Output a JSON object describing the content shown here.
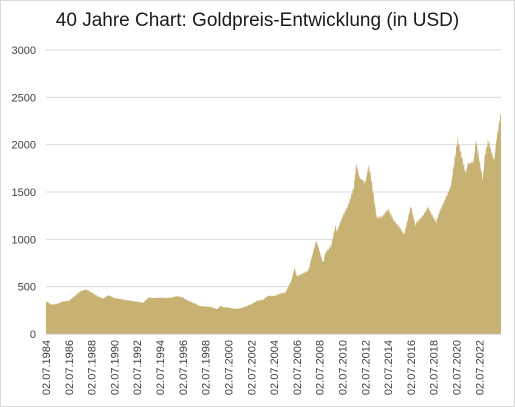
{
  "chart_data": {
    "type": "area",
    "title": "40 Jahre Chart: Goldpreis-Entwicklung (in USD)",
    "xlabel": "",
    "ylabel": "",
    "ylim": [
      0,
      3000
    ],
    "yticks": [
      "0",
      "500",
      "1000",
      "1500",
      "2000",
      "2500",
      "3000"
    ],
    "xticks": [
      "02.07.1984",
      "02.07.1986",
      "02.07.1988",
      "02.07.1990",
      "02.07.1992",
      "02.07.1994",
      "02.07.1996",
      "02.07.1998",
      "02.07.2000",
      "02.07.2002",
      "02.07.2004",
      "02.07.2006",
      "02.07.2008",
      "02.07.2010",
      "02.07.2012",
      "02.07.2014",
      "02.07.2016",
      "02.07.2018",
      "02.07.2020",
      "02.07.2022"
    ],
    "xrange": [
      1984.5,
      2024.4
    ],
    "grid": true,
    "legend": "none",
    "color": "#c8b273",
    "series": [
      {
        "points": [
          [
            1984.5,
            345
          ],
          [
            1985.0,
            310
          ],
          [
            1985.5,
            320
          ],
          [
            1986.0,
            345
          ],
          [
            1986.5,
            350
          ],
          [
            1987.0,
            400
          ],
          [
            1987.5,
            450
          ],
          [
            1988.0,
            470
          ],
          [
            1988.5,
            440
          ],
          [
            1989.0,
            400
          ],
          [
            1989.5,
            375
          ],
          [
            1990.0,
            410
          ],
          [
            1990.5,
            380
          ],
          [
            1991.0,
            370
          ],
          [
            1991.5,
            360
          ],
          [
            1992.0,
            350
          ],
          [
            1992.5,
            340
          ],
          [
            1993.0,
            330
          ],
          [
            1993.5,
            385
          ],
          [
            1994.0,
            380
          ],
          [
            1994.5,
            385
          ],
          [
            1995.0,
            380
          ],
          [
            1995.5,
            385
          ],
          [
            1996.0,
            400
          ],
          [
            1996.5,
            385
          ],
          [
            1997.0,
            350
          ],
          [
            1997.5,
            325
          ],
          [
            1998.0,
            295
          ],
          [
            1998.5,
            290
          ],
          [
            1999.0,
            285
          ],
          [
            1999.5,
            260
          ],
          [
            1999.8,
            300
          ],
          [
            2000.0,
            285
          ],
          [
            2000.5,
            280
          ],
          [
            2001.0,
            265
          ],
          [
            2001.5,
            270
          ],
          [
            2002.0,
            290
          ],
          [
            2002.5,
            315
          ],
          [
            2003.0,
            350
          ],
          [
            2003.5,
            360
          ],
          [
            2004.0,
            405
          ],
          [
            2004.5,
            400
          ],
          [
            2005.0,
            425
          ],
          [
            2005.5,
            440
          ],
          [
            2006.0,
            560
          ],
          [
            2006.3,
            700
          ],
          [
            2006.5,
            610
          ],
          [
            2007.0,
            640
          ],
          [
            2007.5,
            670
          ],
          [
            2008.0,
            900
          ],
          [
            2008.2,
            990
          ],
          [
            2008.8,
            750
          ],
          [
            2009.0,
            860
          ],
          [
            2009.5,
            930
          ],
          [
            2009.9,
            1150
          ],
          [
            2010.0,
            1080
          ],
          [
            2010.5,
            1240
          ],
          [
            2011.0,
            1360
          ],
          [
            2011.5,
            1550
          ],
          [
            2011.7,
            1800
          ],
          [
            2012.0,
            1650
          ],
          [
            2012.5,
            1600
          ],
          [
            2012.8,
            1780
          ],
          [
            2013.0,
            1660
          ],
          [
            2013.3,
            1400
          ],
          [
            2013.5,
            1230
          ],
          [
            2014.0,
            1240
          ],
          [
            2014.5,
            1320
          ],
          [
            2015.0,
            1200
          ],
          [
            2015.5,
            1130
          ],
          [
            2015.9,
            1050
          ],
          [
            2016.0,
            1100
          ],
          [
            2016.5,
            1350
          ],
          [
            2016.9,
            1150
          ],
          [
            2017.0,
            1180
          ],
          [
            2017.5,
            1240
          ],
          [
            2018.0,
            1340
          ],
          [
            2018.7,
            1180
          ],
          [
            2019.0,
            1290
          ],
          [
            2019.5,
            1420
          ],
          [
            2020.0,
            1560
          ],
          [
            2020.6,
            2060
          ],
          [
            2021.0,
            1850
          ],
          [
            2021.3,
            1700
          ],
          [
            2021.5,
            1800
          ],
          [
            2022.0,
            1820
          ],
          [
            2022.2,
            2050
          ],
          [
            2022.8,
            1630
          ],
          [
            2023.0,
            1900
          ],
          [
            2023.3,
            2050
          ],
          [
            2023.5,
            1950
          ],
          [
            2023.8,
            1830
          ],
          [
            2024.0,
            2050
          ],
          [
            2024.2,
            2200
          ],
          [
            2024.4,
            2340
          ]
        ]
      }
    ]
  }
}
